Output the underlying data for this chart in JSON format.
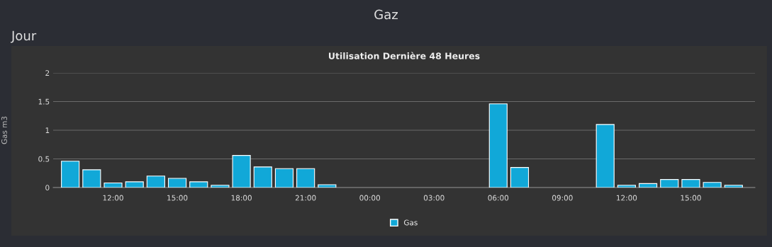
{
  "chart_data": {
    "type": "bar",
    "title": "Utilisation Dernière 48 Heures",
    "annotations": [
      "Gaz",
      "Jour"
    ],
    "ylabel": "Gas m3",
    "categories": [
      null,
      null,
      "12:00",
      null,
      null,
      "15:00",
      null,
      null,
      "18:00",
      null,
      null,
      "21:00",
      null,
      null,
      "00:00",
      null,
      null,
      "03:00",
      null,
      null,
      "06:00",
      null,
      null,
      "09:00",
      null,
      null,
      "12:00",
      null,
      null,
      "15:00",
      null,
      null
    ],
    "series": [
      {
        "name": "Gas",
        "color": "#11a8d8",
        "values": [
          0.46,
          0.31,
          0.08,
          0.1,
          0.2,
          0.16,
          0.1,
          0.04,
          0.56,
          0.36,
          0.33,
          0.33,
          0.05,
          null,
          null,
          null,
          null,
          null,
          null,
          null,
          1.46,
          0.35,
          null,
          null,
          null,
          1.1,
          0.04,
          0.07,
          0.14,
          0.14,
          0.09,
          0.04
        ]
      }
    ],
    "ylim": [
      0,
      2
    ],
    "yticks": [
      0,
      0.5,
      1,
      1.5,
      2
    ],
    "grid": "y",
    "legend": "bottom"
  }
}
